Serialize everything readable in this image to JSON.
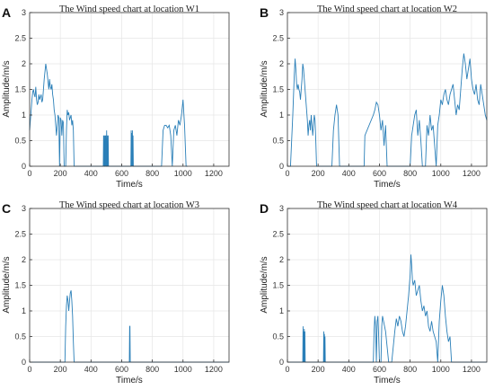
{
  "accent_color": "#2a7fb8",
  "chart_data": [
    {
      "type": "line",
      "panel": "A",
      "title": "The Wind speed chart at location W1",
      "xlabel": "Time/s",
      "ylabel": "Amplitude/m/s",
      "xlim": [
        0,
        1300
      ],
      "ylim": [
        0,
        3
      ],
      "xticks": [
        0,
        200,
        400,
        600,
        800,
        1000,
        1200
      ],
      "xtick_labels": [
        "0",
        "200",
        "400",
        "600",
        "800",
        "1000",
        "1200"
      ],
      "yticks": [
        0,
        0.5,
        1,
        1.5,
        2,
        2.5,
        3
      ],
      "ytick_labels": [
        "0",
        "0.5",
        "1",
        "1.5",
        "2",
        "2.5",
        "3"
      ],
      "grid": true,
      "series": [
        {
          "x": [
            0,
            5,
            10,
            15,
            20,
            25,
            30,
            35,
            40,
            45,
            50,
            55,
            60,
            65,
            70,
            75,
            80,
            85,
            90,
            95,
            100,
            105,
            110,
            115,
            120,
            125,
            130,
            135,
            140,
            145,
            150,
            155,
            160,
            165,
            170,
            175,
            180,
            185,
            190,
            195,
            200,
            205,
            210,
            215,
            220,
            225,
            230,
            235,
            240,
            245,
            250,
            255,
            260,
            265,
            270,
            275,
            280,
            285,
            290,
            295,
            300,
            305,
            480,
            482,
            484,
            486,
            488,
            490,
            492,
            494,
            496,
            498,
            500,
            502,
            504,
            506,
            508,
            510,
            512,
            514,
            516,
            660,
            662,
            664,
            666,
            668,
            670,
            672,
            674,
            676,
            678,
            680,
            860,
            870,
            880,
            890,
            900,
            910,
            920,
            930,
            940,
            950,
            960,
            970,
            980,
            990,
            1000,
            1010,
            1020,
            1030
          ],
          "y": [
            0.7,
            0.9,
            1.1,
            1.3,
            1.45,
            1.5,
            1.4,
            1.35,
            1.55,
            1.3,
            1.2,
            1.25,
            1.4,
            1.3,
            1.35,
            1.4,
            1.25,
            1.3,
            1.5,
            1.7,
            1.85,
            2.0,
            1.9,
            1.8,
            1.65,
            1.5,
            1.7,
            1.55,
            1.5,
            1.6,
            1.4,
            1.3,
            1.1,
            1.0,
            0.8,
            0.6,
            0.8,
            1.0,
            0.95,
            0,
            0.95,
            0.9,
            0.6,
            0.9,
            0.85,
            0,
            0,
            0,
            0.7,
            1.1,
            1.0,
            1.05,
            0.9,
            0.95,
            1.0,
            0.8,
            0.9,
            0.7,
            0,
            0,
            0,
            0,
            0,
            0.6,
            0,
            0.6,
            0,
            0,
            0.6,
            0,
            0.6,
            0,
            0,
            0.7,
            0,
            0,
            0.6,
            0,
            0.6,
            0,
            0,
            0,
            0.7,
            0,
            0.65,
            0,
            0.7,
            0,
            0.6,
            0,
            0,
            0,
            0,
            0.7,
            0.8,
            0.8,
            0.75,
            0.8,
            0.6,
            0,
            0.7,
            0.8,
            0.6,
            0.9,
            0.8,
            1.0,
            1.3,
            0.8,
            0,
            0
          ]
        }
      ]
    },
    {
      "type": "line",
      "panel": "B",
      "title": "The Wind speed chart at location W2",
      "xlabel": "Time/s",
      "ylabel": "Amplitude/m/s",
      "xlim": [
        0,
        1300
      ],
      "ylim": [
        0,
        3
      ],
      "xticks": [
        0,
        200,
        400,
        600,
        800,
        1000,
        1200
      ],
      "xtick_labels": [
        "0",
        "200",
        "400",
        "600",
        "800",
        "1000",
        "1200"
      ],
      "yticks": [
        0,
        0.5,
        1,
        1.5,
        2,
        2.5,
        3
      ],
      "ytick_labels": [
        "0",
        "0.5",
        "1",
        "1.5",
        "2",
        "2.5",
        "3"
      ],
      "grid": true,
      "series": [
        {
          "x": [
            0,
            20,
            35,
            40,
            45,
            50,
            55,
            60,
            65,
            70,
            75,
            80,
            85,
            90,
            95,
            100,
            105,
            110,
            115,
            120,
            125,
            130,
            135,
            140,
            145,
            150,
            155,
            160,
            165,
            170,
            175,
            180,
            185,
            190,
            200,
            210,
            220,
            230,
            240,
            250,
            260,
            270,
            280,
            290,
            300,
            310,
            320,
            330,
            340,
            360,
            380,
            400,
            420,
            500,
            505,
            560,
            570,
            580,
            590,
            600,
            610,
            620,
            630,
            640,
            650,
            660,
            800,
            810,
            820,
            830,
            840,
            850,
            860,
            870,
            880,
            900,
            910,
            920,
            930,
            940,
            950,
            960,
            970,
            980,
            990,
            1000,
            1010,
            1020,
            1030,
            1040,
            1050,
            1060,
            1070,
            1080,
            1090,
            1100,
            1110,
            1120,
            1130,
            1140,
            1150,
            1160,
            1170,
            1180,
            1190,
            1200,
            1210,
            1220,
            1230,
            1240,
            1250,
            1260,
            1270,
            1280,
            1290,
            1300
          ],
          "y": [
            0,
            0,
            1.0,
            1.4,
            1.8,
            2.1,
            1.9,
            1.6,
            1.5,
            1.6,
            1.5,
            1.45,
            1.3,
            1.5,
            1.7,
            2.0,
            1.9,
            1.7,
            1.5,
            1.3,
            1.1,
            0.9,
            0.6,
            0.8,
            0.9,
            0.7,
            1.0,
            0.8,
            0.6,
            0.8,
            1.0,
            0.9,
            0.5,
            0,
            0,
            0,
            0,
            0,
            0,
            0,
            0,
            0,
            0,
            0,
            0.7,
            1.0,
            1.2,
            1.0,
            0,
            0,
            0,
            0,
            0,
            0,
            0.6,
            1.0,
            1.1,
            1.25,
            1.2,
            1.0,
            0.7,
            0.9,
            0.4,
            0.8,
            0,
            0,
            0,
            0.6,
            0.8,
            1.0,
            1.1,
            0.6,
            0.9,
            0.5,
            0,
            0,
            0.8,
            0.6,
            1.0,
            0.7,
            0.8,
            0.4,
            0,
            0.8,
            1.0,
            1.3,
            1.2,
            1.4,
            1.5,
            1.3,
            1.2,
            1.4,
            1.5,
            1.6,
            1.3,
            1.0,
            1.2,
            1.1,
            1.5,
            1.9,
            2.2,
            2.0,
            1.7,
            1.9,
            2.1,
            1.7,
            1.5,
            1.4,
            1.6,
            1.3,
            1.2,
            1.6,
            1.4,
            1.2,
            1.0,
            0.9
          ]
        }
      ]
    },
    {
      "type": "line",
      "panel": "C",
      "title": "The Wind speed chart at location W3",
      "xlabel": "Time/s",
      "ylabel": "Amplitude/m/s",
      "xlim": [
        0,
        1300
      ],
      "ylim": [
        0,
        3
      ],
      "xticks": [
        0,
        200,
        400,
        600,
        800,
        1000,
        1200
      ],
      "xtick_labels": [
        "0",
        "200",
        "400",
        "600",
        "800",
        "1000",
        "1200"
      ],
      "yticks": [
        0,
        0.5,
        1,
        1.5,
        2,
        2.5,
        3
      ],
      "ytick_labels": [
        "0",
        "0.5",
        "1",
        "1.5",
        "2",
        "2.5",
        "3"
      ],
      "grid": true,
      "series": [
        {
          "x": [
            0,
            230,
            235,
            240,
            245,
            250,
            255,
            260,
            265,
            270,
            275,
            280,
            285,
            290,
            295,
            650,
            652,
            654,
            656,
            1300
          ],
          "y": [
            0,
            0,
            0.7,
            1.1,
            1.3,
            1.2,
            1.0,
            1.2,
            1.35,
            1.4,
            1.2,
            0.9,
            0.4,
            0,
            0,
            0,
            0.7,
            0.7,
            0,
            0
          ]
        }
      ]
    },
    {
      "type": "line",
      "panel": "D",
      "title": "The Wind speed chart at location W4",
      "xlabel": "Time/s",
      "ylabel": "Amplitude/m/s",
      "xlim": [
        0,
        1300
      ],
      "ylim": [
        0,
        3
      ],
      "xticks": [
        0,
        200,
        400,
        600,
        800,
        1000,
        1200
      ],
      "xtick_labels": [
        "0",
        "200",
        "400",
        "600",
        "800",
        "1000",
        "1200"
      ],
      "yticks": [
        0,
        0.5,
        1,
        1.5,
        2,
        2.5,
        3
      ],
      "ytick_labels": [
        "0",
        "0.5",
        "1",
        "1.5",
        "2",
        "2.5",
        "3"
      ],
      "grid": true,
      "series": [
        {
          "x": [
            0,
            100,
            102,
            104,
            106,
            108,
            110,
            112,
            114,
            116,
            118,
            235,
            237,
            239,
            241,
            243,
            245,
            247,
            249,
            560,
            565,
            570,
            575,
            580,
            585,
            590,
            595,
            600,
            605,
            610,
            615,
            620,
            640,
            660,
            680,
            700,
            710,
            720,
            730,
            740,
            750,
            760,
            770,
            780,
            790,
            800,
            805,
            810,
            815,
            820,
            830,
            840,
            850,
            860,
            870,
            880,
            890,
            900,
            910,
            920,
            930,
            940,
            950,
            960,
            970,
            980,
            990,
            1000,
            1010,
            1020,
            1030,
            1040,
            1050,
            1060,
            1070,
            1080,
            1090,
            1100,
            1300
          ],
          "y": [
            0,
            0,
            0.7,
            0,
            0.6,
            0,
            0.65,
            0,
            0.6,
            0,
            0,
            0,
            0.6,
            0,
            0.55,
            0,
            0.5,
            0,
            0,
            0,
            0.6,
            0.9,
            0.7,
            0,
            0.8,
            0.9,
            0.5,
            0,
            0,
            0,
            0.7,
            0.9,
            0.6,
            0,
            0,
            0.6,
            0.85,
            0.7,
            0.9,
            0.8,
            0.6,
            0.5,
            0.7,
            1.0,
            1.3,
            1.7,
            2.1,
            1.9,
            1.6,
            1.5,
            1.6,
            1.3,
            1.4,
            1.5,
            1.2,
            1.0,
            1.1,
            0.9,
            1.0,
            0.7,
            0.6,
            0.8,
            0.6,
            0.5,
            0.4,
            0,
            0.8,
            1.2,
            1.5,
            1.3,
            0.9,
            0.6,
            0.4,
            0.5,
            0,
            0,
            0,
            0,
            0
          ]
        }
      ]
    }
  ]
}
